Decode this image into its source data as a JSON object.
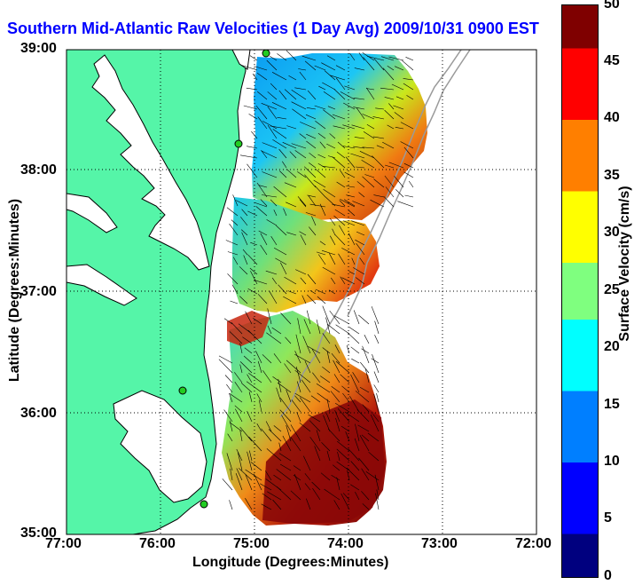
{
  "title": "Southern Mid-Atlantic Raw Velocities (1 Day Avg) 2009/10/31 0900 EST",
  "x_axis": {
    "label": "Longitude (Degrees:Minutes)",
    "ticks": [
      "77:00",
      "76:00",
      "75:00",
      "74:00",
      "73:00",
      "72:00"
    ]
  },
  "y_axis": {
    "label": "Latitude (Degrees:Minutes)",
    "ticks": [
      "39:00",
      "38:00",
      "37:00",
      "36:00",
      "35:00"
    ]
  },
  "colorbar": {
    "label": "Surface Velocity (cm/s)",
    "ticks": [
      "50",
      "45",
      "40",
      "35",
      "30",
      "25",
      "20",
      "15",
      "10",
      "5",
      "0"
    ],
    "min": 0,
    "max": 50,
    "colormap": "jet"
  },
  "colors": {
    "land": "#55f5a8",
    "title": "#0000ff",
    "station": "#22cc22",
    "bathymetry": "#9a9a9a"
  },
  "grid": true
}
